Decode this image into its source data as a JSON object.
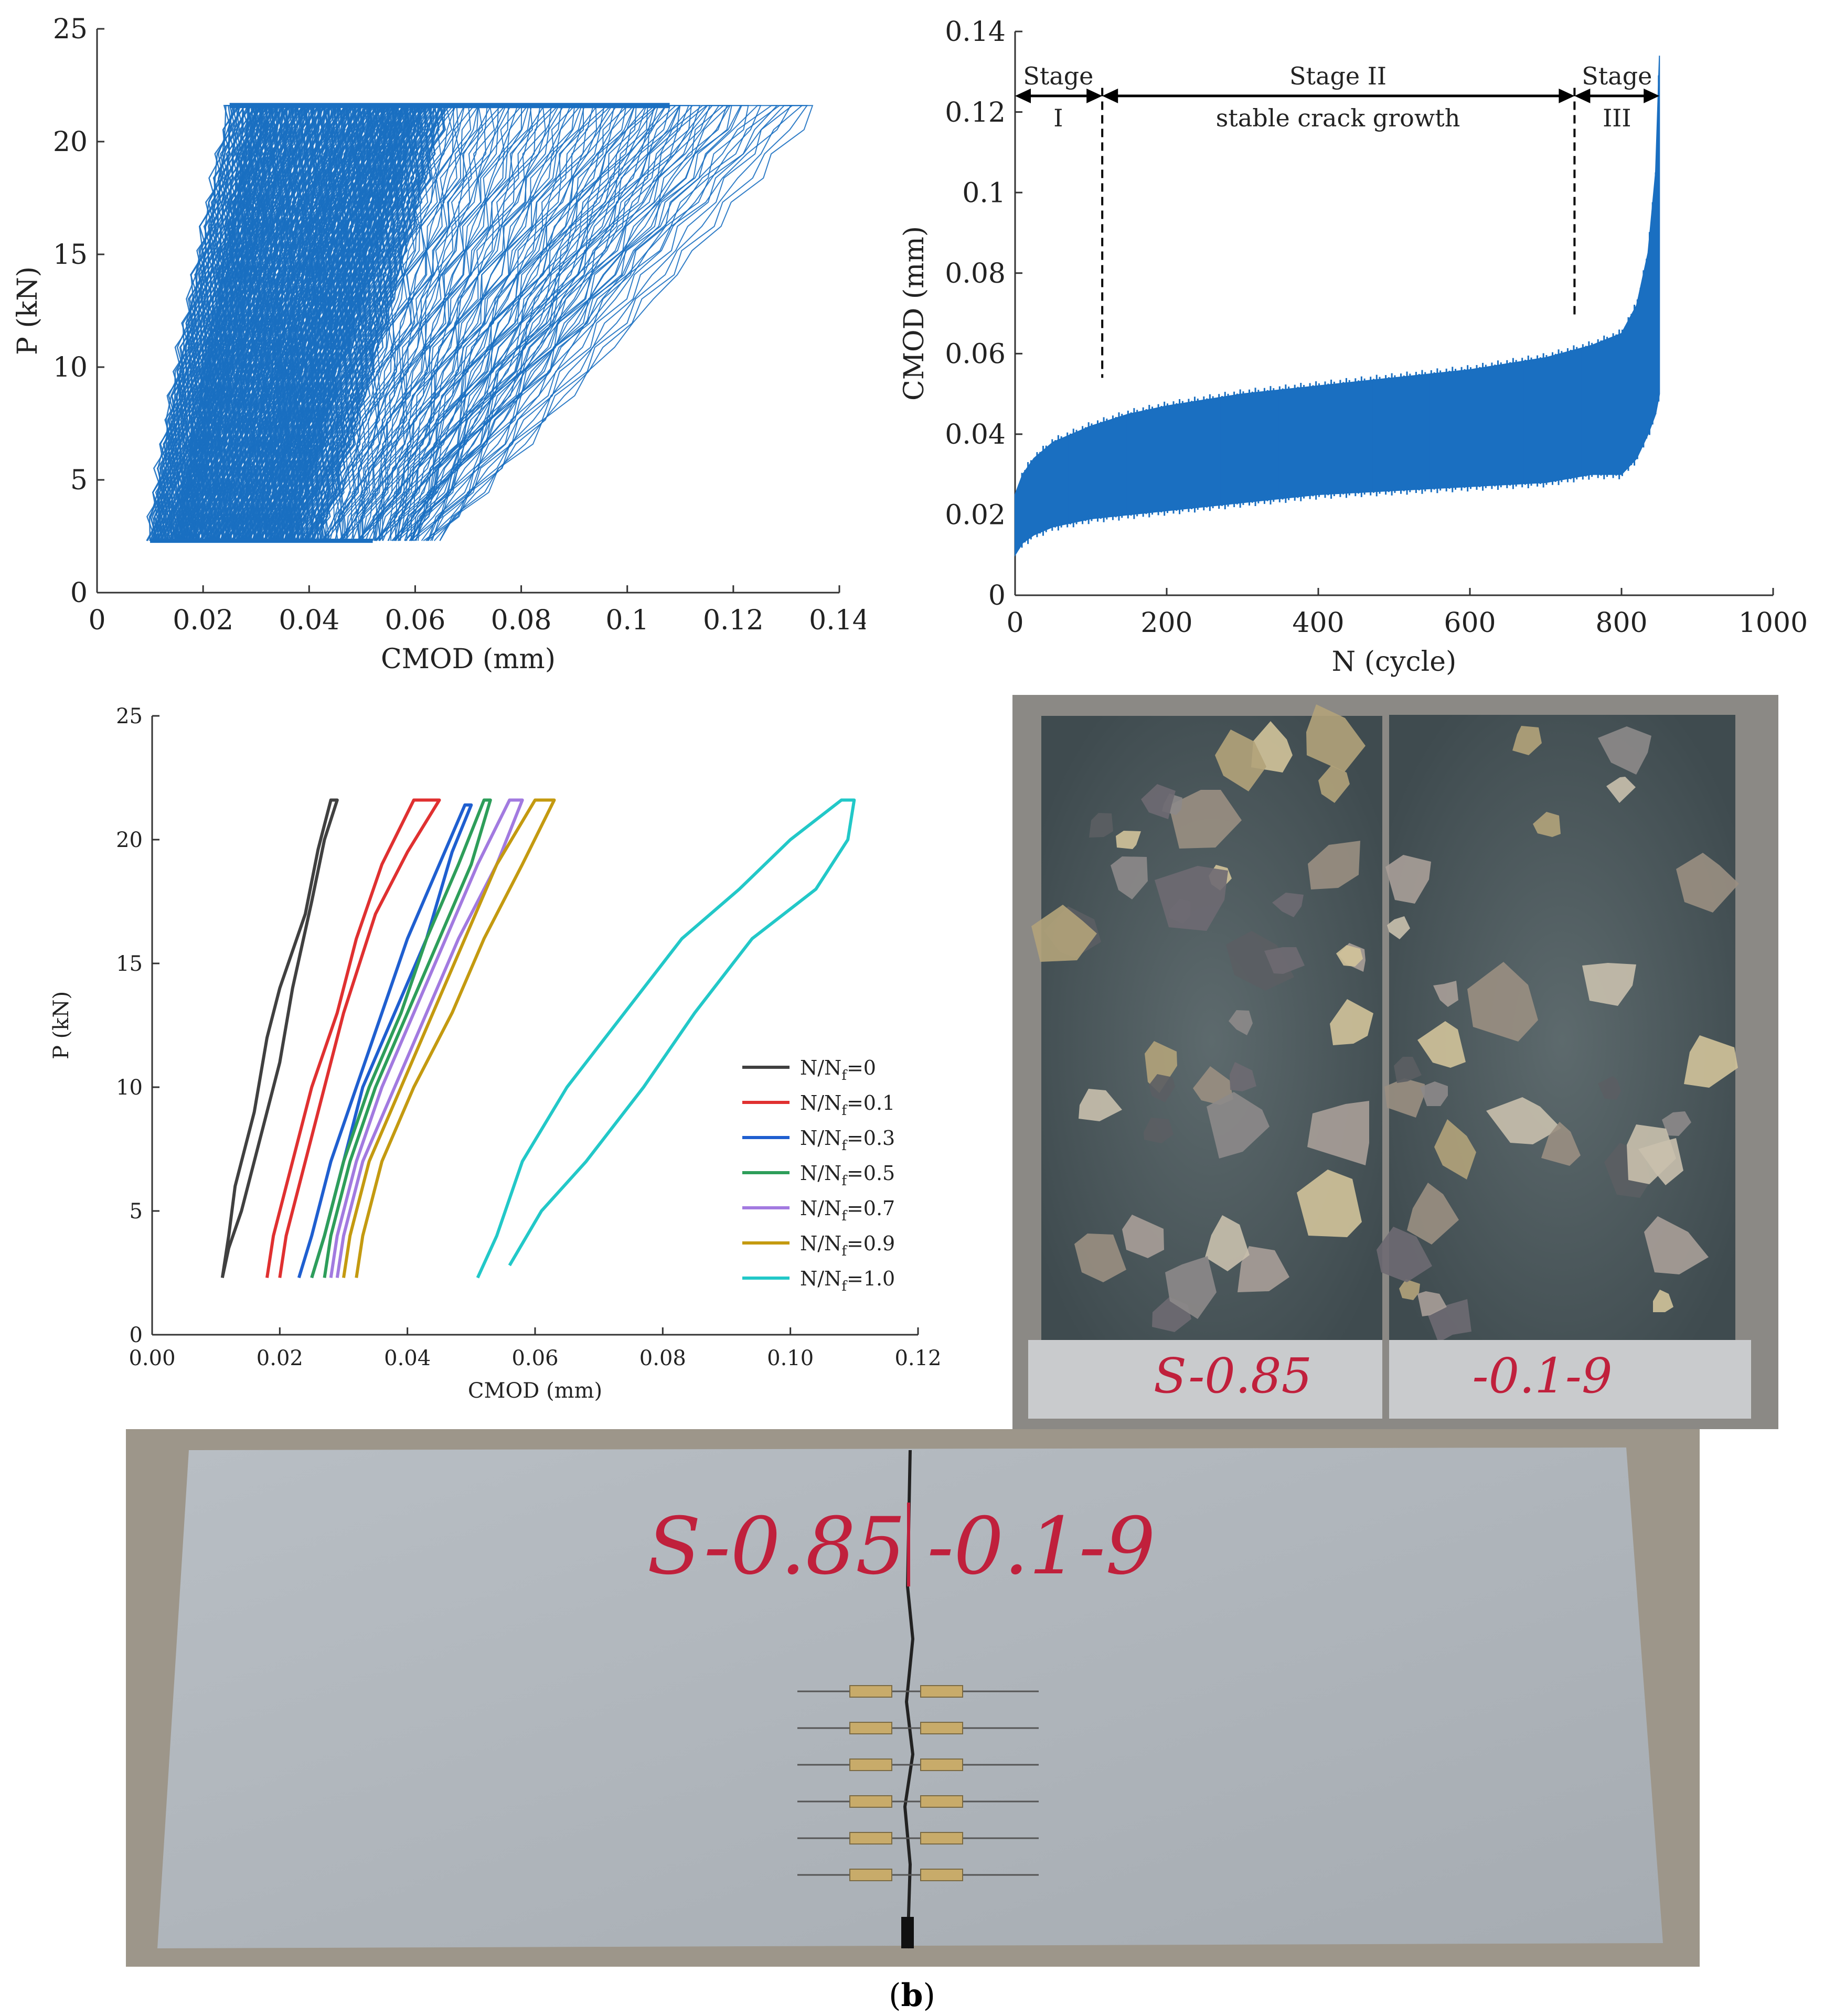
{
  "chart_data": [
    {
      "id": "chart1",
      "type": "line",
      "title": "",
      "xlabel": "CMOD (mm)",
      "ylabel": "P (kN)",
      "xlim": [
        0,
        0.14
      ],
      "ylim": [
        0,
        25
      ],
      "xticks": [
        "0",
        "0.02",
        "0.04",
        "0.06",
        "0.08",
        "0.1",
        "0.12",
        "0.14"
      ],
      "yticks": [
        "0",
        "5",
        "10",
        "15",
        "20",
        "25"
      ],
      "grid": false,
      "series_color": "#1a6fc1",
      "load_range_kN": [
        2.3,
        21.6
      ],
      "hysteresis_loops": [
        {
          "unload_cmod_at_min": 0.01,
          "load_cmod_at_max": 0.025
        },
        {
          "unload_cmod_at_min": 0.014,
          "load_cmod_at_max": 0.032
        },
        {
          "unload_cmod_at_min": 0.02,
          "load_cmod_at_max": 0.04
        },
        {
          "unload_cmod_at_min": 0.026,
          "load_cmod_at_max": 0.048
        },
        {
          "unload_cmod_at_min": 0.032,
          "load_cmod_at_max": 0.055
        },
        {
          "unload_cmod_at_min": 0.038,
          "load_cmod_at_max": 0.062
        },
        {
          "unload_cmod_at_min": 0.042,
          "load_cmod_at_max": 0.07
        },
        {
          "unload_cmod_at_min": 0.045,
          "load_cmod_at_max": 0.08
        },
        {
          "unload_cmod_at_min": 0.048,
          "load_cmod_at_max": 0.09
        },
        {
          "unload_cmod_at_min": 0.052,
          "load_cmod_at_max": 0.1
        },
        {
          "unload_cmod_at_min": 0.055,
          "load_cmod_at_max": 0.108
        },
        {
          "unload_cmod_at_min": 0.058,
          "load_cmod_at_max": 0.118
        },
        {
          "unload_cmod_at_min": 0.06,
          "load_cmod_at_max": 0.134
        }
      ]
    },
    {
      "id": "chart2",
      "type": "area",
      "title": "",
      "xlabel": "N (cycle)",
      "ylabel": "CMOD (mm)",
      "xlim": [
        0,
        1000
      ],
      "ylim": [
        0,
        0.14
      ],
      "xticks": [
        "0",
        "200",
        "400",
        "600",
        "800",
        "1000"
      ],
      "yticks": [
        "0",
        "0.02",
        "0.04",
        "0.06",
        "0.08",
        "0.1",
        "0.12",
        "0.14"
      ],
      "grid": false,
      "series_color": "#1a6fc1",
      "x": [
        0,
        10,
        25,
        50,
        100,
        150,
        200,
        300,
        400,
        500,
        600,
        700,
        760,
        800,
        820,
        835,
        845,
        850
      ],
      "upper": [
        0.025,
        0.03,
        0.034,
        0.038,
        0.042,
        0.045,
        0.047,
        0.05,
        0.052,
        0.054,
        0.056,
        0.059,
        0.062,
        0.065,
        0.072,
        0.085,
        0.105,
        0.134
      ],
      "lower": [
        0.01,
        0.013,
        0.015,
        0.017,
        0.019,
        0.02,
        0.021,
        0.023,
        0.025,
        0.026,
        0.027,
        0.028,
        0.03,
        0.03,
        0.034,
        0.04,
        0.045,
        0.05
      ],
      "stage_boundaries": [
        {
          "n": 115,
          "cmod_top": 0.126,
          "cmod_bottom": 0.054
        },
        {
          "n": 738,
          "cmod_top": 0.126,
          "cmod_bottom": 0.069
        }
      ],
      "annotations": {
        "stage1_title": "Stage",
        "stage1_num": "I",
        "stage2_title": "Stage  II",
        "stage2_desc": "stable crack growth",
        "stage3_title": "Stage",
        "stage3_num": "III"
      }
    },
    {
      "id": "chart3",
      "type": "line",
      "title": "",
      "xlabel": "CMOD (mm)",
      "ylabel": "P (kN)",
      "xlim": [
        0,
        0.12
      ],
      "ylim": [
        0,
        25
      ],
      "xticks": [
        "0.00",
        "0.02",
        "0.04",
        "0.06",
        "0.08",
        "0.10",
        "0.12"
      ],
      "yticks": [
        "0",
        "5",
        "10",
        "15",
        "20",
        "25"
      ],
      "grid": false,
      "legend_position": "right",
      "series": [
        {
          "label_num": "N/N",
          "label_sub": "f",
          "label_tail": "=0",
          "color": "#404040",
          "loading": [
            [
              0.011,
              2.3
            ],
            [
              0.012,
              4
            ],
            [
              0.013,
              6
            ],
            [
              0.016,
              9
            ],
            [
              0.018,
              12
            ],
            [
              0.02,
              14
            ],
            [
              0.024,
              17
            ],
            [
              0.026,
              19.6
            ],
            [
              0.028,
              21.6
            ]
          ],
          "unloading": [
            [
              0.029,
              21.6
            ],
            [
              0.027,
              20
            ],
            [
              0.025,
              17.5
            ],
            [
              0.022,
              14
            ],
            [
              0.02,
              11
            ],
            [
              0.017,
              8
            ],
            [
              0.014,
              5
            ],
            [
              0.012,
              3.5
            ],
            [
              0.011,
              2.3
            ]
          ]
        },
        {
          "label_num": "N/N",
          "label_sub": "f",
          "label_tail": "=0.1",
          "color": "#e03030",
          "loading": [
            [
              0.018,
              2.3
            ],
            [
              0.019,
              4
            ],
            [
              0.022,
              7
            ],
            [
              0.025,
              10
            ],
            [
              0.029,
              13
            ],
            [
              0.032,
              16
            ],
            [
              0.036,
              19
            ],
            [
              0.041,
              21.6
            ]
          ],
          "unloading": [
            [
              0.045,
              21.6
            ],
            [
              0.04,
              19.5
            ],
            [
              0.035,
              17
            ],
            [
              0.03,
              13
            ],
            [
              0.027,
              10
            ],
            [
              0.024,
              7
            ],
            [
              0.021,
              4
            ],
            [
              0.02,
              2.3
            ]
          ]
        },
        {
          "label_num": "N/N",
          "label_sub": "f",
          "label_tail": "=0.3",
          "color": "#1f5fd0",
          "loading": [
            [
              0.023,
              2.3
            ],
            [
              0.025,
              4
            ],
            [
              0.028,
              7
            ],
            [
              0.032,
              10
            ],
            [
              0.036,
              13
            ],
            [
              0.04,
              16
            ],
            [
              0.045,
              19
            ],
            [
              0.049,
              21.4
            ]
          ],
          "unloading": [
            [
              0.05,
              21.4
            ],
            [
              0.047,
              19.5
            ],
            [
              0.043,
              16
            ],
            [
              0.038,
              13
            ],
            [
              0.033,
              10
            ],
            [
              0.03,
              7
            ],
            [
              0.027,
              4
            ],
            [
              0.025,
              2.3
            ]
          ]
        },
        {
          "label_num": "N/N",
          "label_sub": "f",
          "label_tail": "=0.5",
          "color": "#2e9e5a",
          "loading": [
            [
              0.025,
              2.3
            ],
            [
              0.027,
              4
            ],
            [
              0.03,
              7
            ],
            [
              0.034,
              10
            ],
            [
              0.039,
              13
            ],
            [
              0.043,
              16
            ],
            [
              0.048,
              19
            ],
            [
              0.052,
              21.6
            ]
          ],
          "unloading": [
            [
              0.053,
              21.6
            ],
            [
              0.05,
              19
            ],
            [
              0.045,
              16
            ],
            [
              0.04,
              13
            ],
            [
              0.035,
              10
            ],
            [
              0.031,
              7
            ],
            [
              0.028,
              4
            ],
            [
              0.027,
              2.3
            ]
          ]
        },
        {
          "label_num": "N/N",
          "label_sub": "f",
          "label_tail": "=0.7",
          "color": "#a27ae0",
          "loading": [
            [
              0.028,
              2.3
            ],
            [
              0.029,
              4
            ],
            [
              0.032,
              7
            ],
            [
              0.036,
              10
            ],
            [
              0.041,
              13
            ],
            [
              0.046,
              16
            ],
            [
              0.051,
              19
            ],
            [
              0.056,
              21.6
            ]
          ],
          "unloading": [
            [
              0.058,
              21.6
            ],
            [
              0.054,
              19
            ],
            [
              0.048,
              16
            ],
            [
              0.043,
              13
            ],
            [
              0.038,
              10
            ],
            [
              0.033,
              7
            ],
            [
              0.03,
              4
            ],
            [
              0.029,
              2.3
            ]
          ]
        },
        {
          "label_num": "N/N",
          "label_sub": "f",
          "label_tail": "=0.9",
          "color": "#c49a10",
          "loading": [
            [
              0.03,
              2.3
            ],
            [
              0.031,
              4
            ],
            [
              0.034,
              7
            ],
            [
              0.039,
              10
            ],
            [
              0.044,
              13
            ],
            [
              0.049,
              16
            ],
            [
              0.054,
              19
            ],
            [
              0.06,
              21.6
            ]
          ],
          "unloading": [
            [
              0.063,
              21.6
            ],
            [
              0.058,
              19
            ],
            [
              0.052,
              16
            ],
            [
              0.047,
              13
            ],
            [
              0.041,
              10
            ],
            [
              0.036,
              7
            ],
            [
              0.033,
              4
            ],
            [
              0.032,
              2.3
            ]
          ]
        },
        {
          "label_num": "N/N",
          "label_sub": "f",
          "label_tail": "=1.0",
          "color": "#22c8c8",
          "loading": [
            [
              0.051,
              2.3
            ],
            [
              0.054,
              4
            ],
            [
              0.058,
              7
            ],
            [
              0.065,
              10
            ],
            [
              0.074,
              13
            ],
            [
              0.083,
              16
            ],
            [
              0.092,
              18
            ],
            [
              0.1,
              20
            ],
            [
              0.108,
              21.6
            ]
          ],
          "unloading": [
            [
              0.11,
              21.6
            ],
            [
              0.109,
              20
            ],
            [
              0.104,
              18
            ],
            [
              0.094,
              16
            ],
            [
              0.085,
              13
            ],
            [
              0.077,
              10
            ],
            [
              0.068,
              7
            ],
            [
              0.061,
              5
            ],
            [
              0.056,
              2.8
            ]
          ]
        }
      ]
    }
  ],
  "photos": {
    "fracture_label_left": "S-0.85",
    "fracture_label_right": "-0.1-9",
    "beam_label_left": "S-0.85",
    "beam_label_right": "-0.1-9"
  },
  "caption": {
    "open": "(",
    "letter": "b",
    "close": ")"
  }
}
